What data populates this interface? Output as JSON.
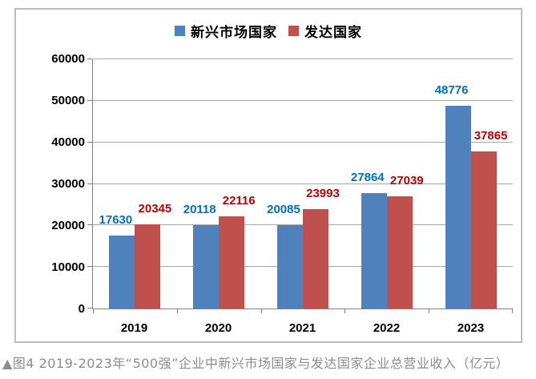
{
  "chart_data": {
    "type": "bar",
    "title": "",
    "categories": [
      "2019",
      "2020",
      "2021",
      "2022",
      "2023"
    ],
    "series": [
      {
        "name": "新兴市场国家",
        "color": "#4f81bd",
        "label_color": "#0070c0",
        "values": [
          17630,
          20118,
          20085,
          27864,
          48776
        ]
      },
      {
        "name": "发达国家",
        "color": "#c0504d",
        "label_color": "#c00000",
        "values": [
          20345,
          22116,
          23993,
          27039,
          37865
        ]
      }
    ],
    "ylim": [
      0,
      60000
    ],
    "yticks": [
      0,
      10000,
      20000,
      30000,
      40000,
      50000,
      60000
    ],
    "xlabel": "",
    "ylabel": "",
    "grid": true,
    "legend_position": "top",
    "data_labels": true
  },
  "caption": "▲图4 2019-2023年“500强”企业中新兴市场国家与发达国家企业总营业收入（亿元）",
  "colors": {
    "frame_border": "#bcbcbc",
    "gridline": "#a6a6a6",
    "axis": "#808080",
    "caption_text": "#8c8c8c",
    "axis_text": "#000000"
  }
}
